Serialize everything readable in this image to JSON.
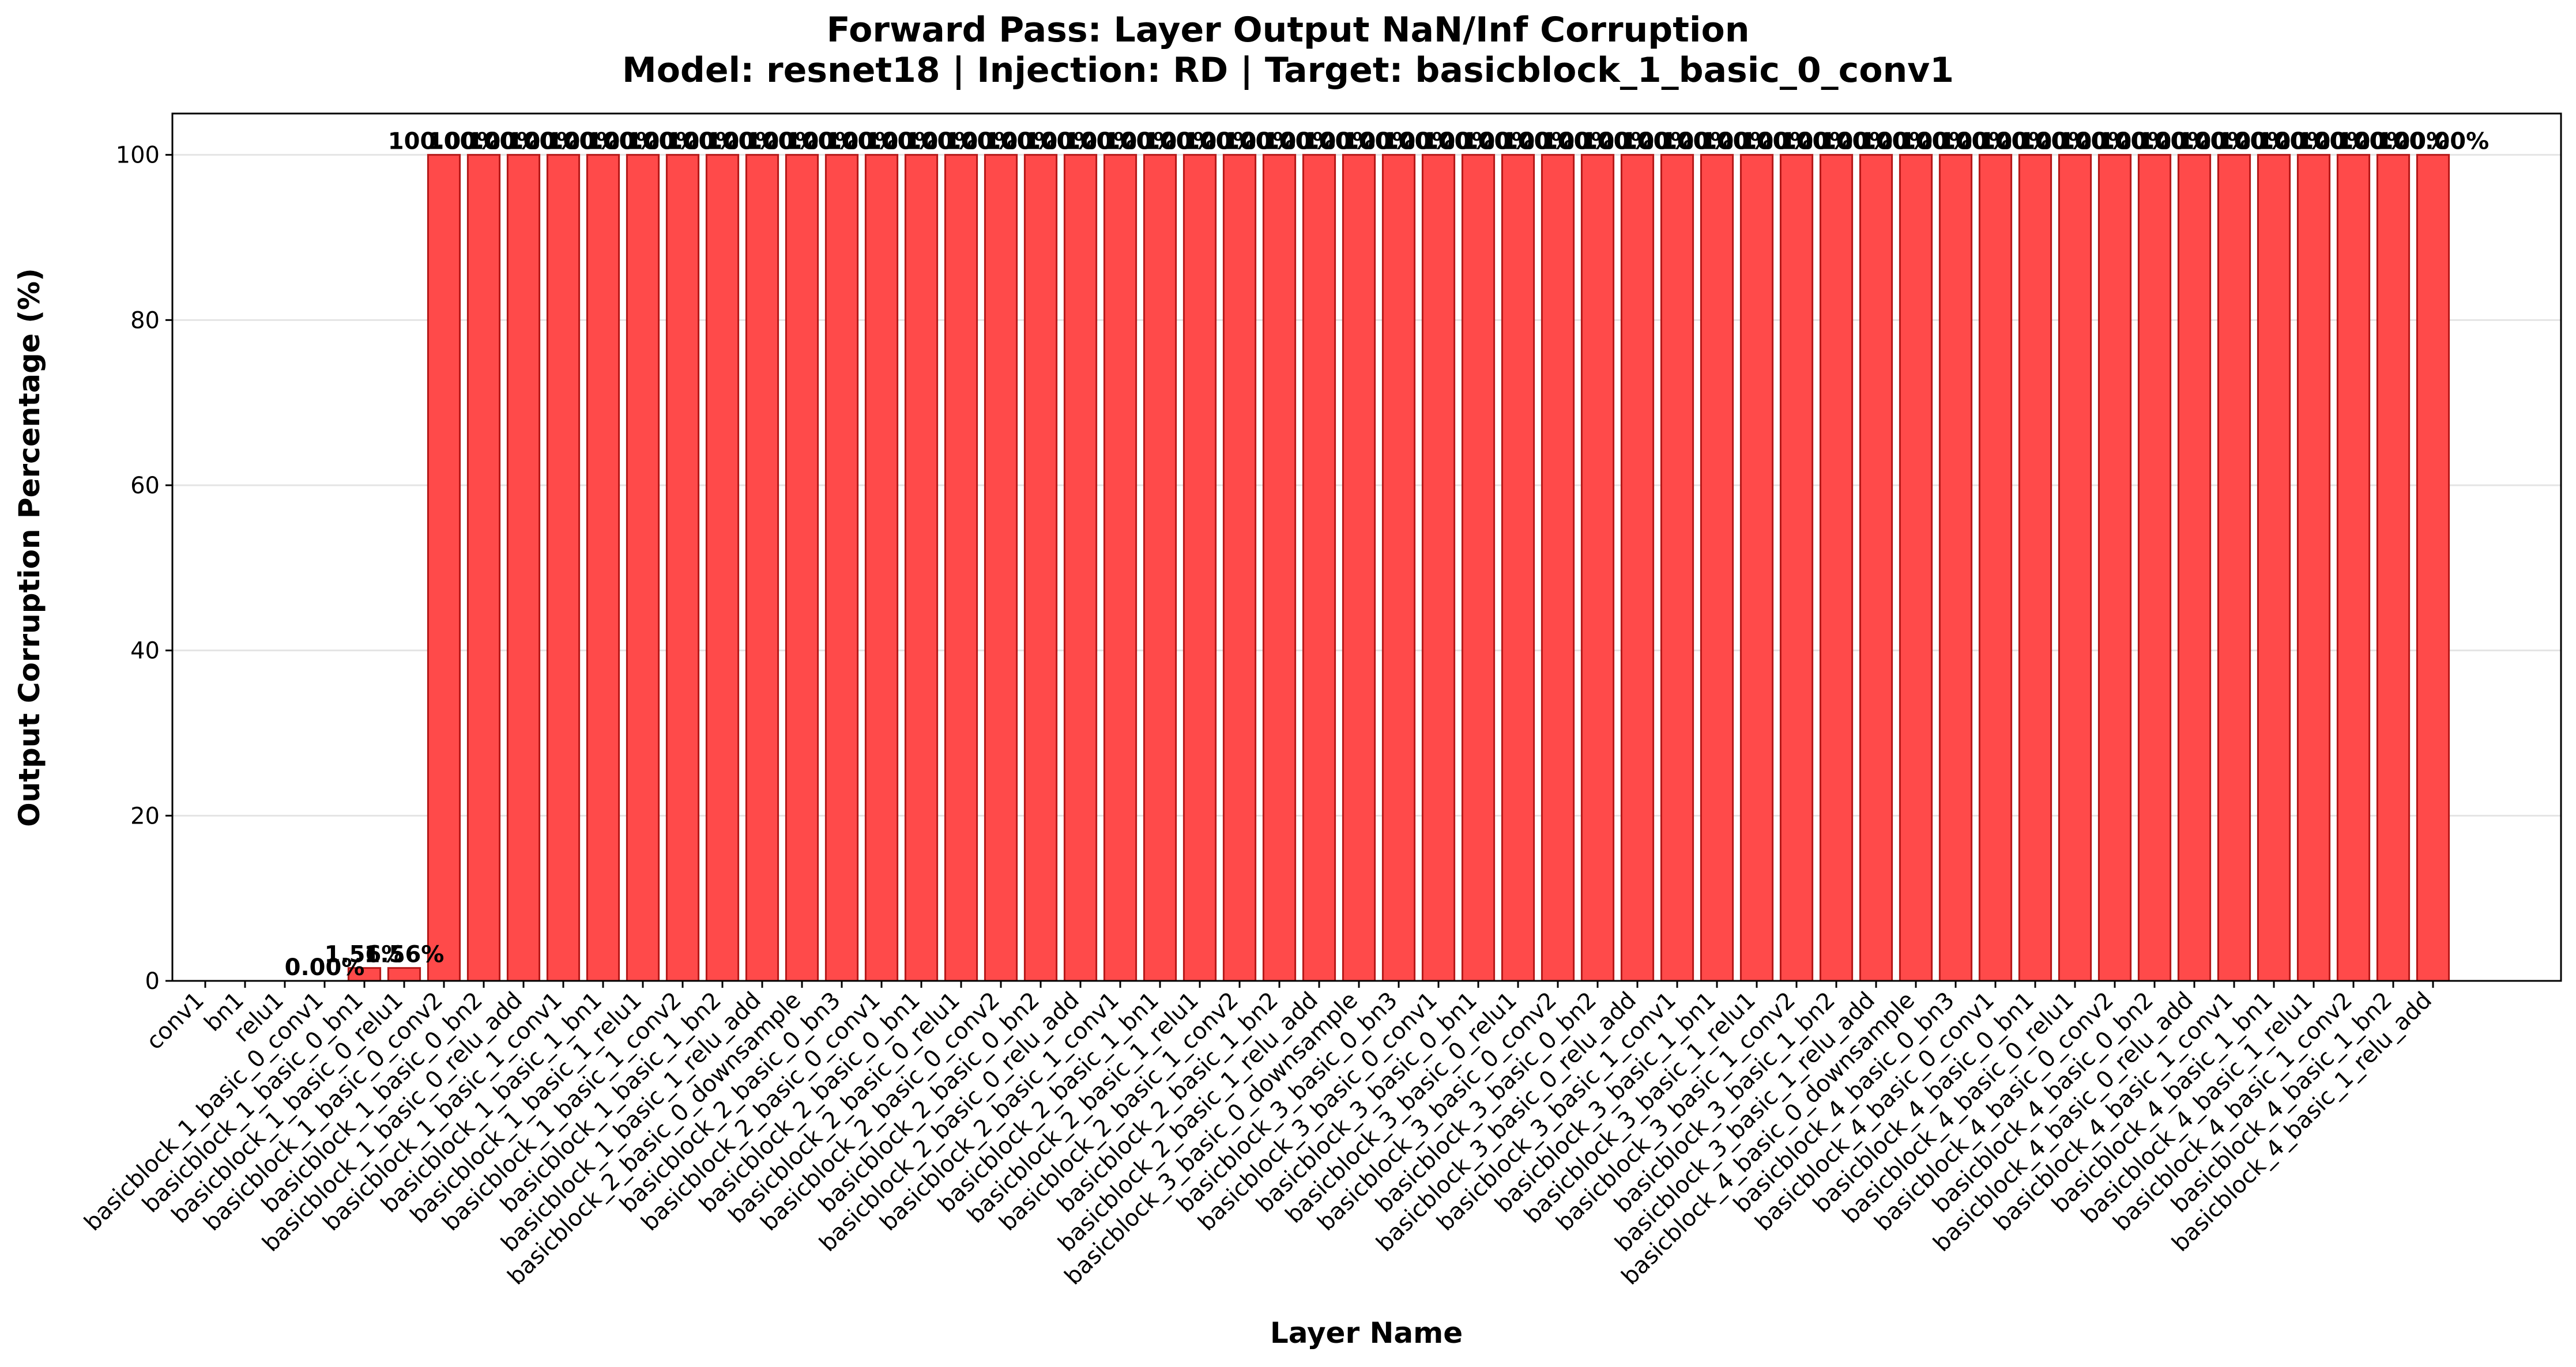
{
  "chart_data": {
    "type": "bar",
    "title": "Forward Pass: Layer Output NaN/Inf Corruption",
    "subtitle": "Model: resnet18 | Injection: RD | Target: basicblock_1_basic_0_conv1",
    "xlabel": "Layer Name",
    "ylabel": "Output Corruption Percentage (%)",
    "ylim": [
      0,
      105
    ],
    "yticks": [
      0,
      20,
      40,
      60,
      80,
      100
    ],
    "grid": "y",
    "bar_color": "#ff4a4a",
    "bar_edge_color": "#b51818",
    "categories": [
      "conv1",
      "bn1",
      "relu1",
      "basicblock_1_basic_0_conv1",
      "basicblock_1_basic_0_bn1",
      "basicblock_1_basic_0_relu1",
      "basicblock_1_basic_0_conv2",
      "basicblock_1_basic_0_bn2",
      "basicblock_1_basic_0_relu_add",
      "basicblock_1_basic_1_conv1",
      "basicblock_1_basic_1_bn1",
      "basicblock_1_basic_1_relu1",
      "basicblock_1_basic_1_conv2",
      "basicblock_1_basic_1_bn2",
      "basicblock_1_basic_1_relu_add",
      "basicblock_2_basic_0_downsample",
      "basicblock_2_basic_0_bn3",
      "basicblock_2_basic_0_conv1",
      "basicblock_2_basic_0_bn1",
      "basicblock_2_basic_0_relu1",
      "basicblock_2_basic_0_conv2",
      "basicblock_2_basic_0_bn2",
      "basicblock_2_basic_0_relu_add",
      "basicblock_2_basic_1_conv1",
      "basicblock_2_basic_1_bn1",
      "basicblock_2_basic_1_relu1",
      "basicblock_2_basic_1_conv2",
      "basicblock_2_basic_1_bn2",
      "basicblock_2_basic_1_relu_add",
      "basicblock_3_basic_0_downsample",
      "basicblock_3_basic_0_bn3",
      "basicblock_3_basic_0_conv1",
      "basicblock_3_basic_0_bn1",
      "basicblock_3_basic_0_relu1",
      "basicblock_3_basic_0_conv2",
      "basicblock_3_basic_0_bn2",
      "basicblock_3_basic_0_relu_add",
      "basicblock_3_basic_1_conv1",
      "basicblock_3_basic_1_bn1",
      "basicblock_3_basic_1_relu1",
      "basicblock_3_basic_1_conv2",
      "basicblock_3_basic_1_bn2",
      "basicblock_3_basic_1_relu_add",
      "basicblock_4_basic_0_downsample",
      "basicblock_4_basic_0_bn3",
      "basicblock_4_basic_0_conv1",
      "basicblock_4_basic_0_bn1",
      "basicblock_4_basic_0_relu1",
      "basicblock_4_basic_0_conv2",
      "basicblock_4_basic_0_bn2",
      "basicblock_4_basic_0_relu_add",
      "basicblock_4_basic_1_conv1",
      "basicblock_4_basic_1_bn1",
      "basicblock_4_basic_1_relu1",
      "basicblock_4_basic_1_conv2",
      "basicblock_4_basic_1_bn2",
      "basicblock_4_basic_1_relu_add"
    ],
    "values": [
      0,
      0,
      0,
      0,
      1.56,
      1.56,
      100,
      100,
      100,
      100,
      100,
      100,
      100,
      100,
      100,
      100,
      100,
      100,
      100,
      100,
      100,
      100,
      100,
      100,
      100,
      100,
      100,
      100,
      100,
      100,
      100,
      100,
      100,
      100,
      100,
      100,
      100,
      100,
      100,
      100,
      100,
      100,
      100,
      100,
      100,
      100,
      100,
      100,
      100,
      100,
      100,
      100,
      100,
      100,
      100,
      100,
      100
    ],
    "value_labels": [
      "",
      "",
      "",
      "0.00%",
      "1.56%",
      "1.56%",
      "100.00%",
      "100.00%",
      "100.00%",
      "100.00%",
      "100.00%",
      "100.00%",
      "100.00%",
      "100.00%",
      "100.00%",
      "100.00%",
      "100.00%",
      "100.00%",
      "100.00%",
      "100.00%",
      "100.00%",
      "100.00%",
      "100.00%",
      "100.00%",
      "100.00%",
      "100.00%",
      "100.00%",
      "100.00%",
      "100.00%",
      "100.00%",
      "100.00%",
      "100.00%",
      "100.00%",
      "100.00%",
      "100.00%",
      "100.00%",
      "100.00%",
      "100.00%",
      "100.00%",
      "100.00%",
      "100.00%",
      "100.00%",
      "100.00%",
      "100.00%",
      "100.00%",
      "100.00%",
      "100.00%",
      "100.00%",
      "100.00%",
      "100.00%",
      "100.00%",
      "100.00%",
      "100.00%",
      "100.00%",
      "100.00%",
      "100.00%",
      "100.00%"
    ]
  }
}
